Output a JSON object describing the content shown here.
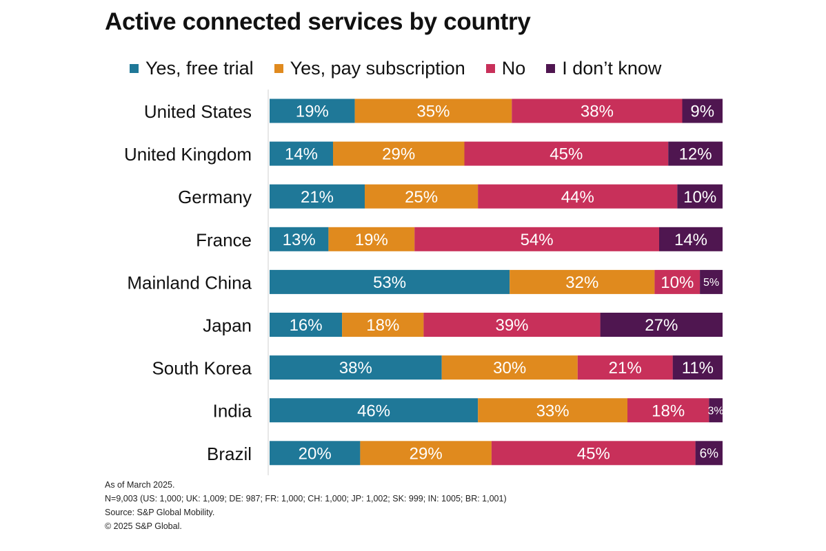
{
  "title": "Active connected services by country",
  "legend": [
    {
      "label": "Yes, free trial",
      "color": "#1f7898"
    },
    {
      "label": "Yes, pay subscription",
      "color": "#e08a1e"
    },
    {
      "label": "No",
      "color": "#c8305a"
    },
    {
      "label": "I don’t know",
      "color": "#4f1650"
    }
  ],
  "footnotes": {
    "date": "As of March 2025.",
    "sample": "N=9,003 (US: 1,000; UK: 1,009; DE: 987; FR: 1,000; CH: 1,000; JP: 1,002; SK: 999; IN: 1005; BR: 1,001)",
    "source": "Source: S&P Global Mobility.",
    "copyright": "© 2025 S&P Global."
  },
  "chart_data": {
    "type": "bar",
    "orientation": "horizontal",
    "stacked": true,
    "normalized": true,
    "title": "Active connected services by country",
    "categories": [
      "United States",
      "United Kingdom",
      "Germany",
      "France",
      "Mainland China",
      "Japan",
      "South Korea",
      "India",
      "Brazil"
    ],
    "series": [
      {
        "name": "Yes, free trial",
        "color": "#1f7898",
        "values": [
          19,
          14,
          21,
          13,
          53,
          16,
          38,
          46,
          20
        ]
      },
      {
        "name": "Yes, pay subscription",
        "color": "#e08a1e",
        "values": [
          35,
          29,
          25,
          19,
          32,
          18,
          30,
          33,
          29
        ]
      },
      {
        "name": "No",
        "color": "#c8305a",
        "values": [
          38,
          45,
          44,
          54,
          10,
          39,
          21,
          18,
          45
        ]
      },
      {
        "name": "I don’t know",
        "color": "#4f1650",
        "values": [
          9,
          12,
          10,
          14,
          5,
          27,
          11,
          3,
          6
        ]
      }
    ],
    "value_suffix": "%",
    "legend": "top",
    "grid": false
  }
}
